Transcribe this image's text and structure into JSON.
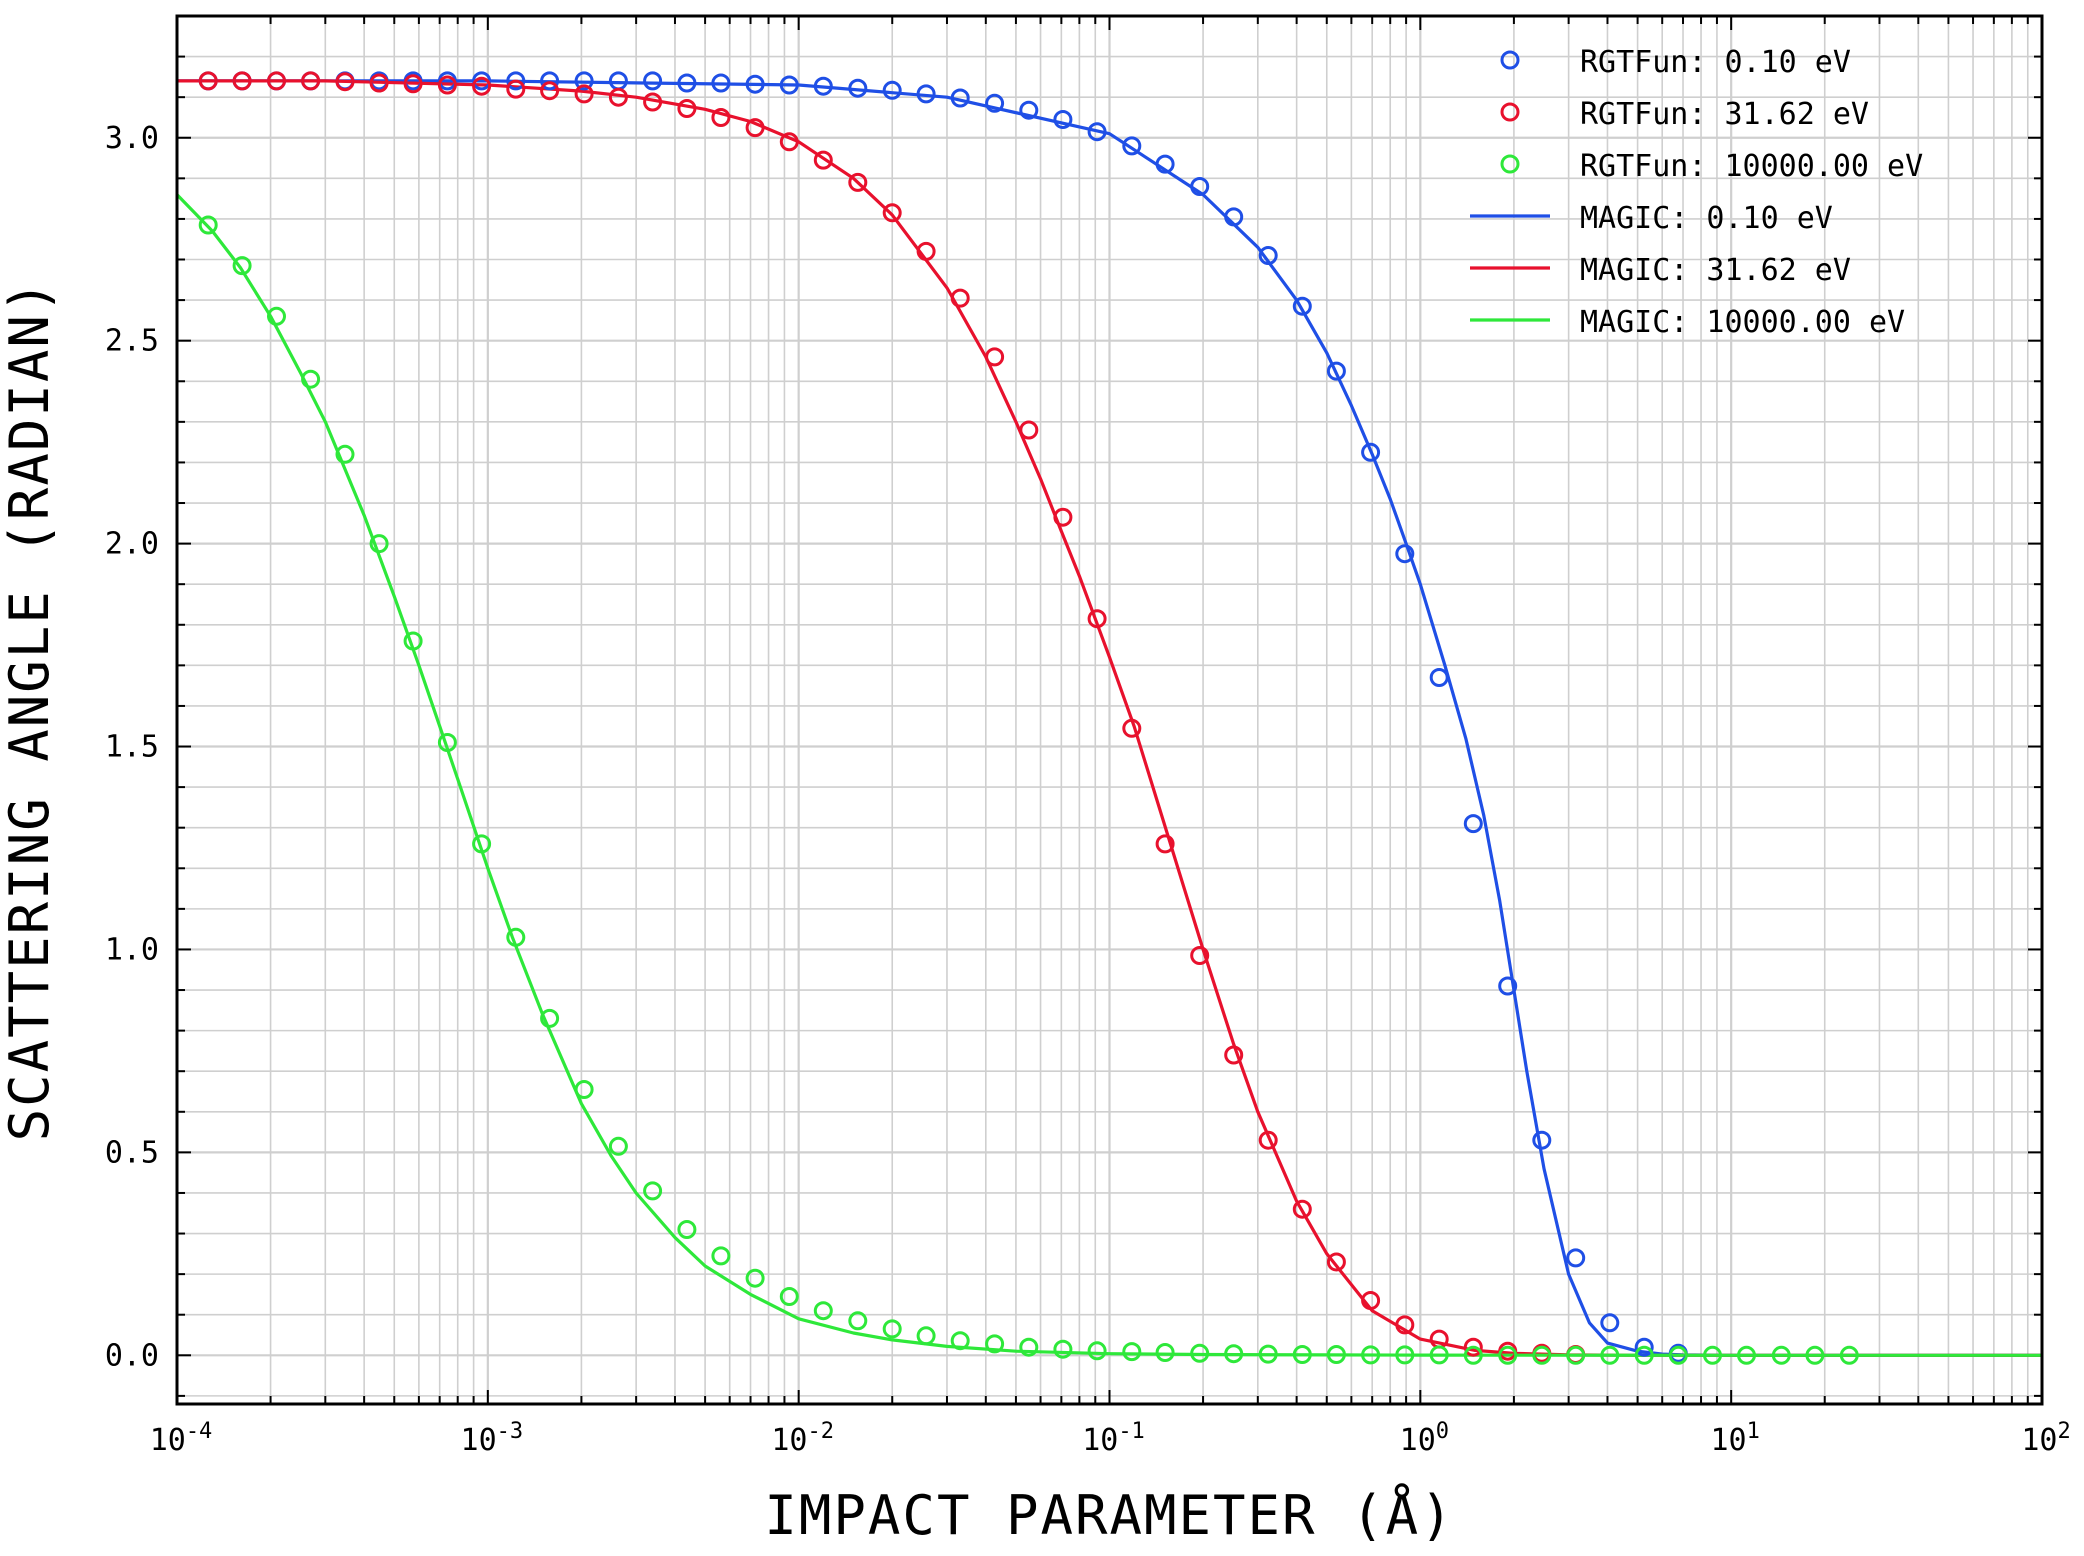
{
  "chart_data": {
    "type": "line",
    "xscale": "log",
    "xlabel": "IMPACT PARAMETER (Å)",
    "ylabel": "SCATTERING ANGLE (RADIAN)",
    "xlim": [
      0.0001,
      100
    ],
    "ylim": [
      -0.12,
      3.3
    ],
    "grid": true,
    "legend_position": "top-right",
    "x_tick_labels": [
      {
        "base": "10",
        "exp": "-4"
      },
      {
        "base": "10",
        "exp": "-3"
      },
      {
        "base": "10",
        "exp": "-2"
      },
      {
        "base": "10",
        "exp": "-1"
      },
      {
        "base": "10",
        "exp": "0"
      },
      {
        "base": "10",
        "exp": "1"
      },
      {
        "base": "10",
        "exp": "2"
      }
    ],
    "y_ticks": [
      0.0,
      0.5,
      1.0,
      1.5,
      2.0,
      2.5,
      3.0
    ],
    "y_tick_labels": [
      "0.0",
      "0.5",
      "1.0",
      "1.5",
      "2.0",
      "2.5",
      "3.0"
    ],
    "series": [
      {
        "name": "RGTFun: 0.10 eV",
        "kind": "markers",
        "color": "#1f4fe6",
        "x": [
          0.000126,
          0.000162,
          0.000209,
          0.000269,
          0.000347,
          0.000447,
          0.000575,
          0.000741,
          0.000955,
          0.00123,
          0.00158,
          0.00204,
          0.00263,
          0.00339,
          0.00437,
          0.00562,
          0.00724,
          0.00933,
          0.012,
          0.0155,
          0.02,
          0.0257,
          0.0331,
          0.0427,
          0.055,
          0.0708,
          0.0912,
          0.118,
          0.151,
          0.195,
          0.251,
          0.324,
          0.417,
          0.537,
          0.692,
          0.891,
          1.15,
          1.48,
          1.91,
          2.46,
          3.16,
          4.07,
          5.25,
          6.76
        ],
        "y": [
          3.14,
          3.14,
          3.14,
          3.14,
          3.14,
          3.14,
          3.14,
          3.14,
          3.14,
          3.14,
          3.14,
          3.14,
          3.14,
          3.14,
          3.135,
          3.135,
          3.132,
          3.13,
          3.127,
          3.122,
          3.117,
          3.108,
          3.098,
          3.085,
          3.068,
          3.045,
          3.015,
          2.98,
          2.935,
          2.88,
          2.805,
          2.71,
          2.585,
          2.425,
          2.225,
          1.975,
          1.67,
          1.31,
          0.91,
          0.53,
          0.24,
          0.08,
          0.02,
          0.005
        ]
      },
      {
        "name": "RGTFun: 31.62 eV",
        "kind": "markers",
        "color": "#e8112d",
        "x": [
          0.000126,
          0.000162,
          0.000209,
          0.000269,
          0.000347,
          0.000447,
          0.000575,
          0.000741,
          0.000955,
          0.00123,
          0.00158,
          0.00204,
          0.00263,
          0.00339,
          0.00437,
          0.00562,
          0.00724,
          0.00933,
          0.012,
          0.0155,
          0.02,
          0.0257,
          0.0331,
          0.0427,
          0.055,
          0.0708,
          0.0912,
          0.118,
          0.151,
          0.195,
          0.251,
          0.324,
          0.417,
          0.537,
          0.692,
          0.891,
          1.15,
          1.48,
          1.91,
          2.46,
          3.16
        ],
        "y": [
          3.14,
          3.14,
          3.14,
          3.14,
          3.138,
          3.135,
          3.133,
          3.13,
          3.127,
          3.12,
          3.116,
          3.108,
          3.1,
          3.088,
          3.072,
          3.05,
          3.025,
          2.99,
          2.945,
          2.89,
          2.815,
          2.72,
          2.605,
          2.46,
          2.28,
          2.065,
          1.815,
          1.545,
          1.26,
          0.985,
          0.74,
          0.53,
          0.36,
          0.23,
          0.135,
          0.075,
          0.04,
          0.02,
          0.01,
          0.005,
          0.002
        ]
      },
      {
        "name": "RGTFun: 10000.00 eV",
        "kind": "markers",
        "color": "#2ee83a",
        "x": [
          0.000126,
          0.000162,
          0.000209,
          0.000269,
          0.000347,
          0.000447,
          0.000575,
          0.000741,
          0.000955,
          0.00123,
          0.00158,
          0.00204,
          0.00263,
          0.00339,
          0.00437,
          0.00562,
          0.00724,
          0.00933,
          0.012,
          0.0155,
          0.02,
          0.0257,
          0.0331,
          0.0427,
          0.055,
          0.0708,
          0.0912,
          0.118,
          0.151,
          0.195,
          0.251,
          0.324,
          0.417,
          0.537,
          0.692,
          0.891,
          1.15,
          1.48,
          1.91,
          2.46,
          3.16,
          4.07,
          5.25,
          6.76,
          8.71,
          11.2,
          14.5,
          18.6,
          24.0
        ],
        "y": [
          2.785,
          2.685,
          2.56,
          2.405,
          2.22,
          2.0,
          1.76,
          1.51,
          1.26,
          1.03,
          0.83,
          0.655,
          0.515,
          0.405,
          0.31,
          0.245,
          0.19,
          0.145,
          0.11,
          0.085,
          0.065,
          0.048,
          0.036,
          0.028,
          0.02,
          0.015,
          0.011,
          0.009,
          0.007,
          0.005,
          0.004,
          0.003,
          0.002,
          0.002,
          0.001,
          0.001,
          0.001,
          0.0,
          0.0,
          0.0,
          0.0,
          0.0,
          0.0,
          0.0,
          0.0,
          0.0,
          0.0,
          0.0,
          0.0
        ]
      },
      {
        "name": "MAGIC: 0.10 eV",
        "kind": "line",
        "color": "#1f4fe6",
        "x": [
          0.0001,
          0.001,
          0.01,
          0.03,
          0.1,
          0.2,
          0.3,
          0.4,
          0.5,
          0.6,
          0.7,
          0.8,
          0.9,
          1.0,
          1.2,
          1.4,
          1.6,
          1.8,
          2.0,
          2.2,
          2.5,
          3.0,
          3.5,
          4.0,
          5.0,
          6.0,
          7.0,
          10.0,
          100.0
        ],
        "y": [
          3.14,
          3.14,
          3.13,
          3.1,
          3.01,
          2.86,
          2.73,
          2.6,
          2.47,
          2.34,
          2.22,
          2.11,
          2.0,
          1.9,
          1.7,
          1.52,
          1.33,
          1.12,
          0.9,
          0.7,
          0.46,
          0.2,
          0.08,
          0.03,
          0.01,
          0.003,
          0.001,
          0.0,
          0.0
        ]
      },
      {
        "name": "MAGIC: 31.62 eV",
        "kind": "line",
        "color": "#e8112d",
        "x": [
          0.0001,
          0.0003,
          0.001,
          0.002,
          0.003,
          0.005,
          0.007,
          0.01,
          0.015,
          0.02,
          0.03,
          0.04,
          0.05,
          0.06,
          0.07,
          0.08,
          0.1,
          0.12,
          0.15,
          0.2,
          0.25,
          0.3,
          0.4,
          0.5,
          0.7,
          1.0,
          1.5,
          2.0,
          3.0,
          5.0,
          10.0,
          100.0
        ],
        "y": [
          3.14,
          3.14,
          3.13,
          3.115,
          3.1,
          3.07,
          3.04,
          2.99,
          2.9,
          2.81,
          2.63,
          2.46,
          2.3,
          2.16,
          2.03,
          1.92,
          1.72,
          1.55,
          1.31,
          1.0,
          0.77,
          0.6,
          0.38,
          0.25,
          0.11,
          0.04,
          0.012,
          0.005,
          0.001,
          0.0,
          0.0,
          0.0
        ]
      },
      {
        "name": "MAGIC: 10000.00 eV",
        "kind": "line",
        "color": "#2ee83a",
        "x": [
          0.0001,
          0.00013,
          0.00016,
          0.0002,
          0.00025,
          0.0003,
          0.0004,
          0.0005,
          0.0006,
          0.0007,
          0.0008,
          0.001,
          0.0012,
          0.0015,
          0.002,
          0.0025,
          0.003,
          0.004,
          0.005,
          0.007,
          0.01,
          0.015,
          0.02,
          0.03,
          0.05,
          0.1,
          0.2,
          0.5,
          1.0,
          2.0,
          10.0,
          100.0
        ],
        "y": [
          2.86,
          2.77,
          2.68,
          2.56,
          2.42,
          2.3,
          2.07,
          1.87,
          1.7,
          1.55,
          1.42,
          1.2,
          1.03,
          0.84,
          0.62,
          0.49,
          0.4,
          0.29,
          0.22,
          0.15,
          0.09,
          0.055,
          0.038,
          0.022,
          0.01,
          0.004,
          0.002,
          0.001,
          0.0005,
          0.0002,
          0.0,
          0.0
        ]
      }
    ]
  }
}
